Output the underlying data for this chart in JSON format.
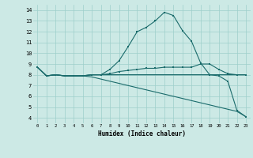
{
  "xlabel": "Humidex (Indice chaleur)",
  "xlim": [
    -0.5,
    23.5
  ],
  "ylim": [
    3.5,
    14.5
  ],
  "xticks": [
    0,
    1,
    2,
    3,
    4,
    5,
    6,
    7,
    8,
    9,
    10,
    11,
    12,
    13,
    14,
    15,
    16,
    17,
    18,
    19,
    20,
    21,
    22,
    23
  ],
  "yticks": [
    4,
    5,
    6,
    7,
    8,
    9,
    10,
    11,
    12,
    13,
    14
  ],
  "bg_color": "#cce9e5",
  "grid_color": "#9ecfca",
  "line_color": "#1a6b6b",
  "line1_x": [
    0,
    1,
    2,
    3,
    4,
    5,
    6,
    7,
    8,
    9,
    10,
    11,
    12,
    13,
    14,
    15,
    16,
    17,
    18,
    19,
    20,
    21,
    22,
    23
  ],
  "line1_y": [
    8.7,
    7.9,
    8.0,
    7.9,
    7.9,
    7.9,
    8.0,
    8.0,
    8.5,
    9.3,
    10.6,
    12.0,
    12.4,
    13.0,
    13.8,
    13.5,
    12.1,
    11.1,
    9.1,
    8.0,
    7.9,
    7.4,
    4.7,
    4.1
  ],
  "line2_x": [
    0,
    1,
    2,
    3,
    4,
    5,
    6,
    7,
    8,
    9,
    10,
    11,
    12,
    13,
    14,
    15,
    16,
    17,
    18,
    19,
    20,
    21,
    22,
    23
  ],
  "line2_y": [
    8.7,
    7.9,
    8.0,
    7.9,
    7.9,
    7.9,
    8.0,
    8.0,
    8.1,
    8.3,
    8.4,
    8.5,
    8.6,
    8.6,
    8.7,
    8.7,
    8.7,
    8.7,
    9.0,
    9.0,
    8.5,
    8.1,
    8.0,
    8.0
  ],
  "line3_x": [
    0,
    1,
    2,
    3,
    4,
    5,
    6,
    7,
    8,
    9,
    10,
    11,
    12,
    13,
    14,
    15,
    16,
    17,
    18,
    19,
    20,
    21,
    22,
    23
  ],
  "line3_y": [
    8.7,
    7.9,
    8.0,
    7.9,
    7.9,
    7.9,
    8.0,
    8.0,
    8.0,
    8.0,
    8.0,
    8.0,
    8.0,
    8.0,
    8.0,
    8.0,
    8.0,
    8.0,
    8.0,
    8.0,
    8.0,
    8.0,
    8.0,
    8.0
  ],
  "line4_x": [
    0,
    1,
    2,
    3,
    4,
    5,
    6,
    7,
    8,
    9,
    10,
    11,
    12,
    13,
    14,
    15,
    16,
    17,
    18,
    19,
    20,
    21,
    22,
    23
  ],
  "line4_y": [
    8.7,
    7.9,
    8.0,
    7.9,
    7.9,
    7.9,
    7.8,
    7.6,
    7.4,
    7.2,
    7.0,
    6.8,
    6.6,
    6.4,
    6.2,
    6.0,
    5.8,
    5.6,
    5.4,
    5.2,
    5.0,
    4.8,
    4.6,
    4.1
  ]
}
